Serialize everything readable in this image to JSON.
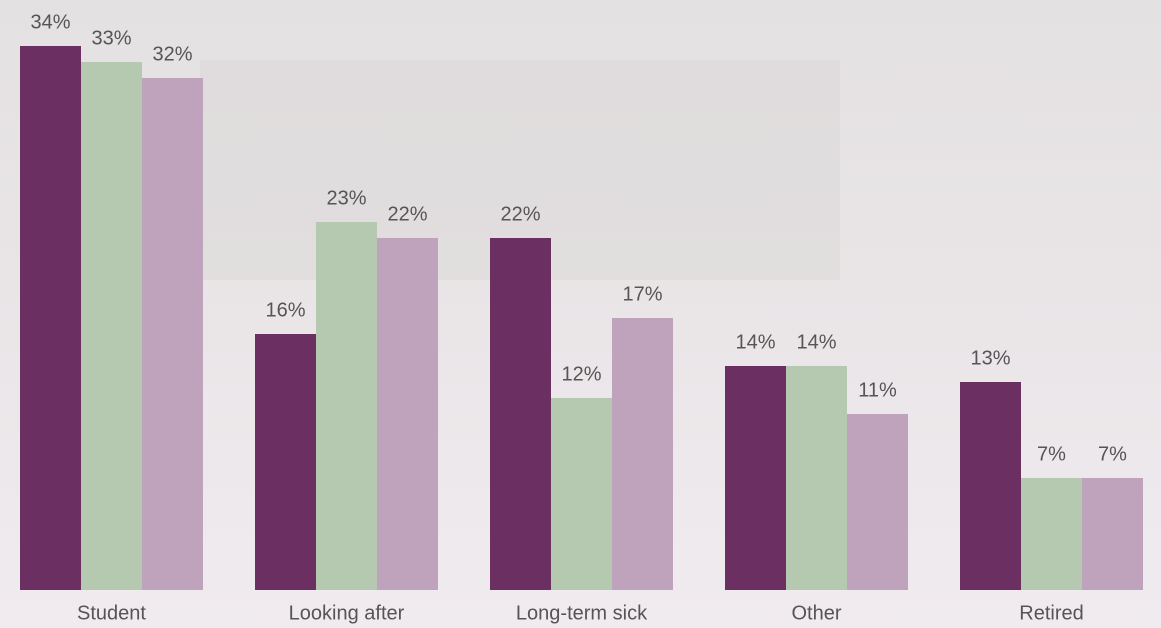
{
  "chart_data": {
    "type": "bar",
    "categories": [
      "Student",
      "Looking after",
      "Long-term sick",
      "Other",
      "Retired"
    ],
    "series": [
      {
        "color": "#6b2f62",
        "values": [
          34,
          16,
          22,
          14,
          13
        ],
        "value_labels": [
          "34%",
          "16%",
          "22%",
          "14%",
          "13%"
        ]
      },
      {
        "color": "#b5c9b0",
        "values": [
          33,
          23,
          12,
          14,
          7
        ],
        "value_labels": [
          "33%",
          "23%",
          "12%",
          "14%",
          "7%"
        ]
      },
      {
        "color": "#bfa3bc",
        "values": [
          32,
          22,
          17,
          11,
          7
        ],
        "value_labels": [
          "32%",
          "22%",
          "17%",
          "11%",
          "7%"
        ]
      }
    ]
  }
}
